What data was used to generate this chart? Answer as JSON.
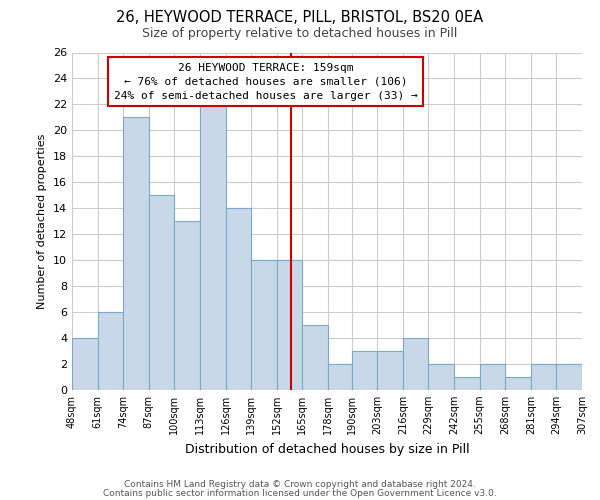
{
  "title1": "26, HEYWOOD TERRACE, PILL, BRISTOL, BS20 0EA",
  "title2": "Size of property relative to detached houses in Pill",
  "xlabel": "Distribution of detached houses by size in Pill",
  "ylabel": "Number of detached properties",
  "bin_edges": [
    48,
    61,
    74,
    87,
    100,
    113,
    126,
    139,
    152,
    165,
    178,
    190,
    203,
    216,
    229,
    242,
    255,
    268,
    281,
    294,
    307
  ],
  "bar_heights": [
    4,
    6,
    21,
    15,
    13,
    22,
    14,
    10,
    10,
    5,
    2,
    3,
    3,
    4,
    2,
    1,
    2,
    1,
    2,
    2
  ],
  "bar_color": "#c8d8e8",
  "bar_edgecolor": "#7aaac8",
  "grid_color": "#cccccc",
  "vline_x": 159,
  "vline_color": "#cc0000",
  "annotation_title": "26 HEYWOOD TERRACE: 159sqm",
  "annotation_line1": "← 76% of detached houses are smaller (106)",
  "annotation_line2": "24% of semi-detached houses are larger (33) →",
  "annotation_box_edgecolor": "#cc0000",
  "ylim": [
    0,
    26
  ],
  "yticks": [
    0,
    2,
    4,
    6,
    8,
    10,
    12,
    14,
    16,
    18,
    20,
    22,
    24,
    26
  ],
  "footer1": "Contains HM Land Registry data © Crown copyright and database right 2024.",
  "footer2": "Contains public sector information licensed under the Open Government Licence v3.0."
}
